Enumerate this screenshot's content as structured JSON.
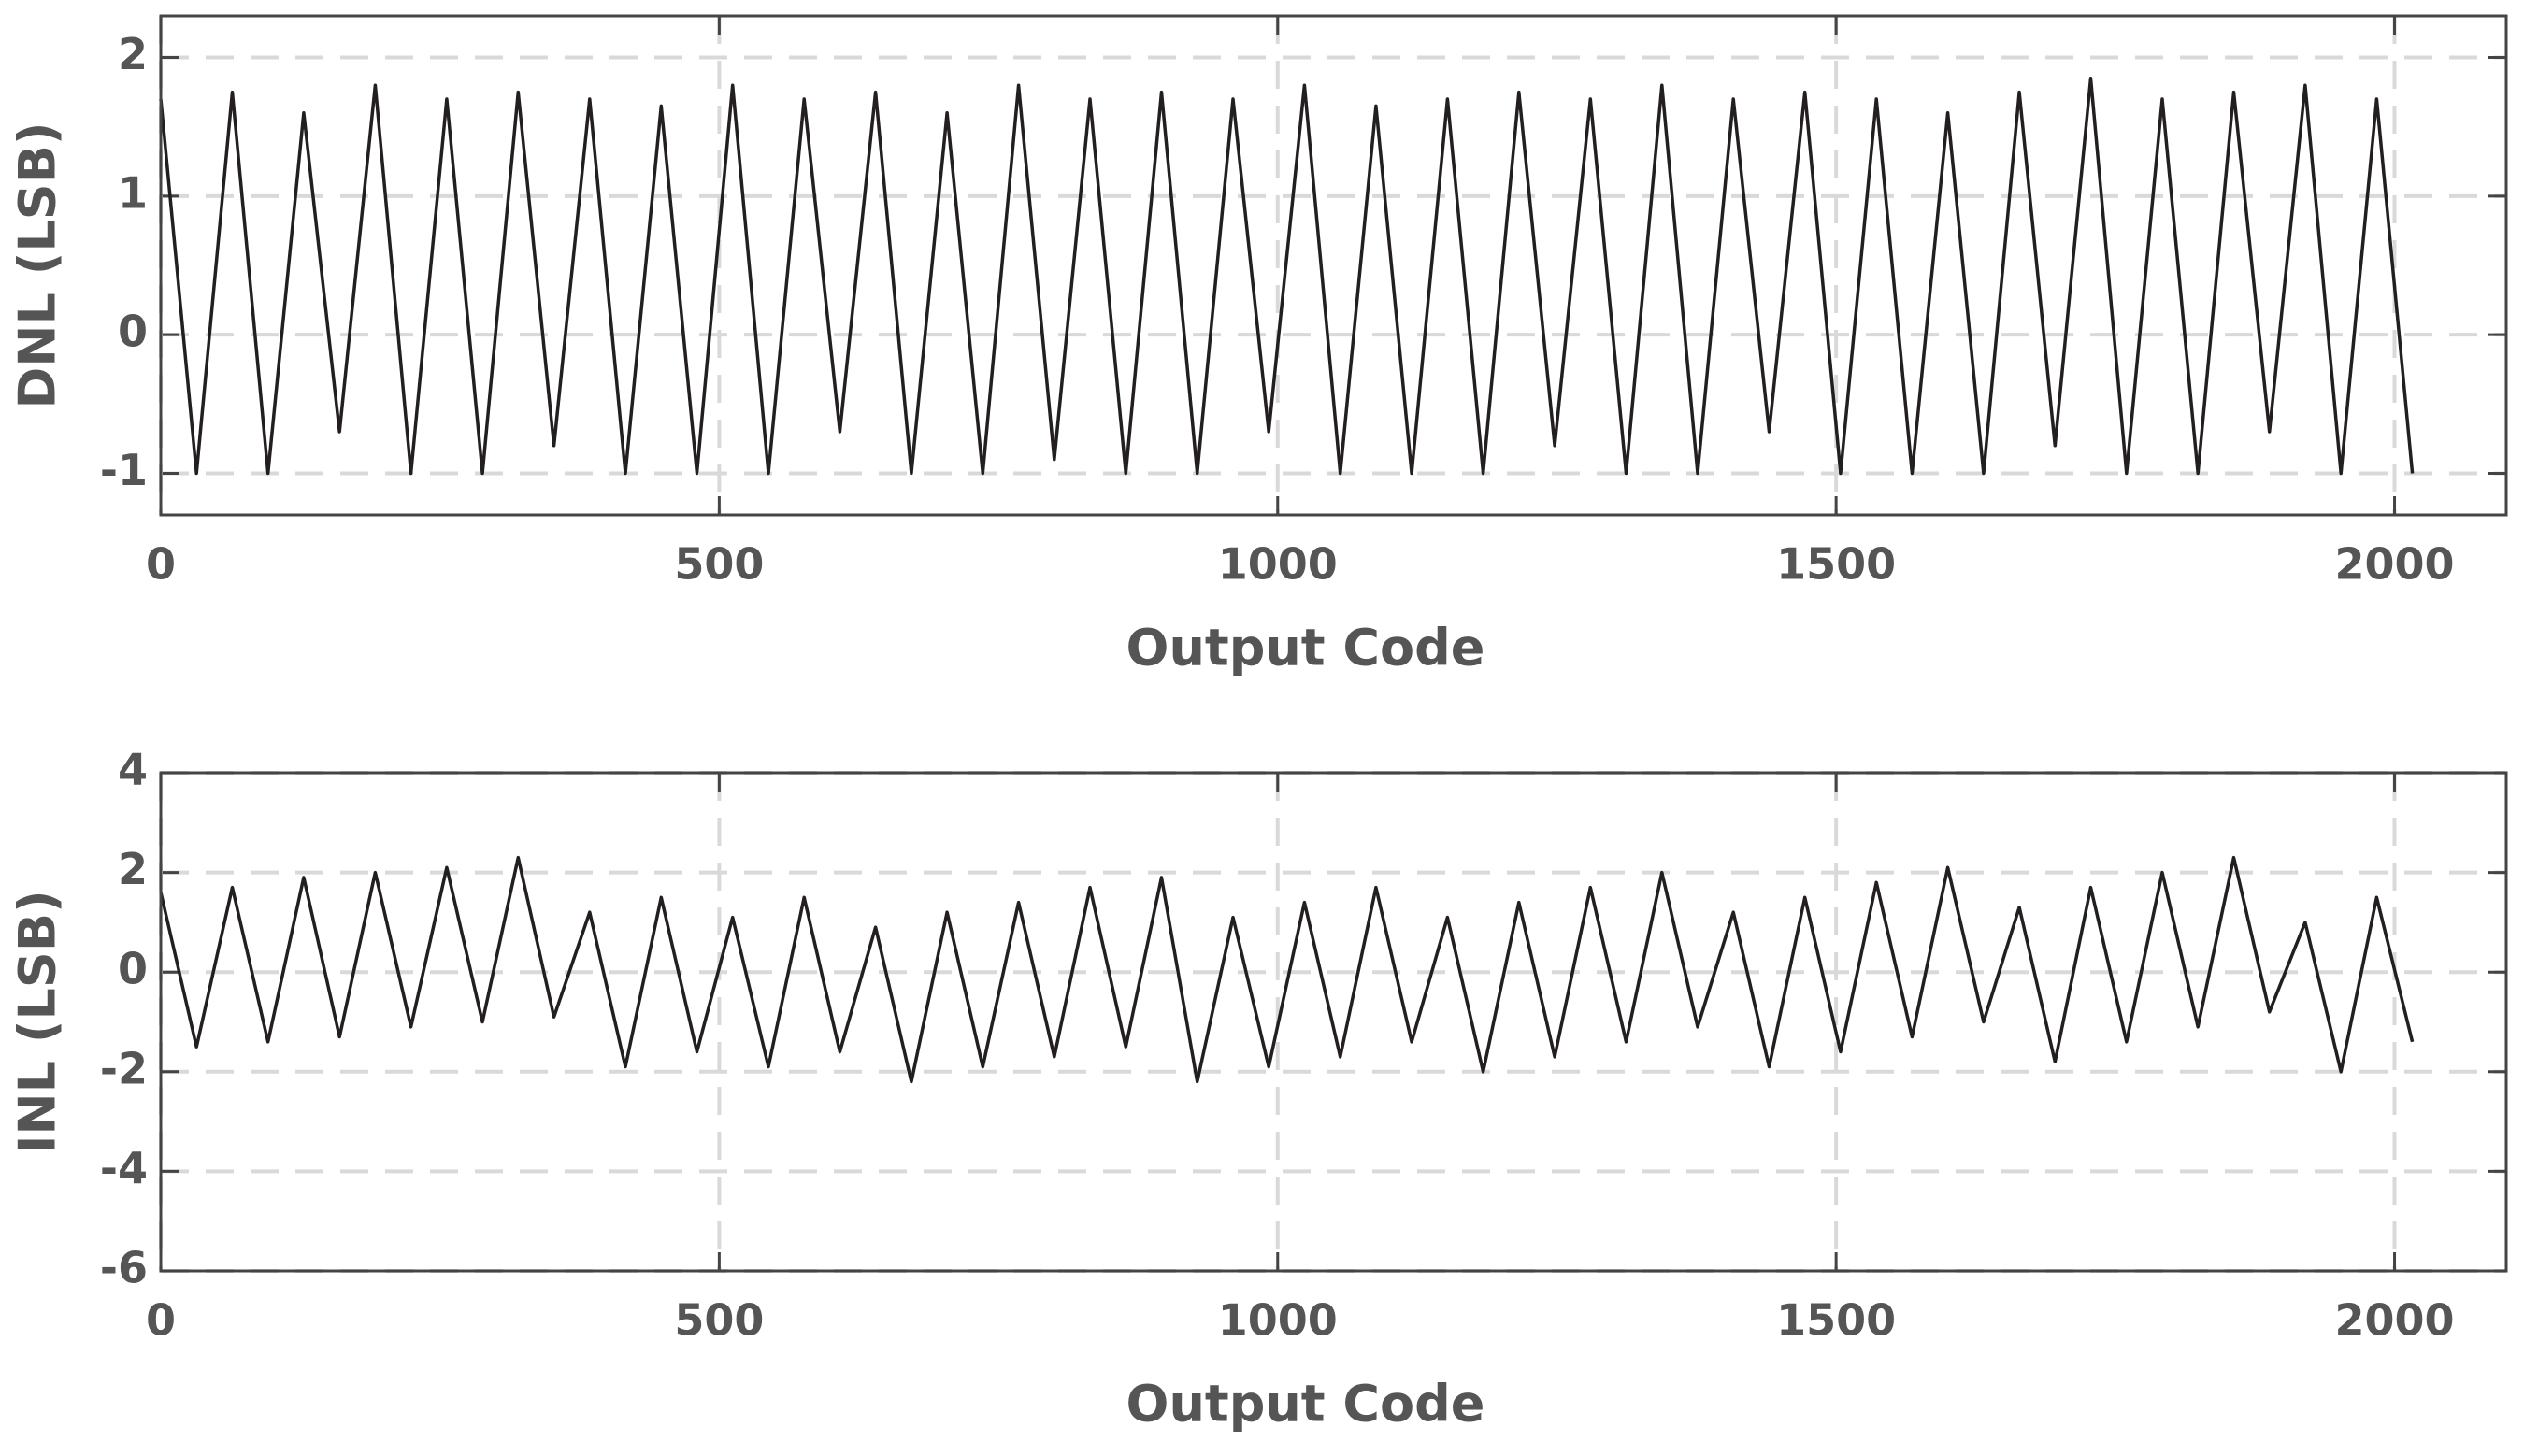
{
  "chart_data": [
    {
      "type": "line",
      "xlabel": "Output Code",
      "ylabel": "DNL (LSB)",
      "xlim": [
        0,
        2100
      ],
      "ylim": [
        -1.3,
        2.3
      ],
      "xticks": [
        0,
        500,
        1000,
        1500,
        2000
      ],
      "yticks": [
        -1,
        0,
        1,
        2
      ],
      "grid": true,
      "x": [
        0,
        32,
        64,
        96,
        128,
        160,
        192,
        224,
        256,
        288,
        320,
        352,
        384,
        416,
        448,
        480,
        512,
        544,
        576,
        608,
        640,
        672,
        704,
        736,
        768,
        800,
        832,
        864,
        896,
        928,
        960,
        992,
        1024,
        1056,
        1088,
        1120,
        1152,
        1184,
        1216,
        1248,
        1280,
        1312,
        1344,
        1376,
        1408,
        1440,
        1472,
        1504,
        1536,
        1568,
        1600,
        1632,
        1664,
        1696,
        1728,
        1760,
        1792,
        1824,
        1856,
        1888,
        1920,
        1952,
        1984,
        2016
      ],
      "series": [
        {
          "name": "DNL",
          "color": "#231f20",
          "values": [
            1.7,
            -1.0,
            1.75,
            -1.0,
            1.6,
            -0.7,
            1.8,
            -1.0,
            1.7,
            -1.0,
            1.75,
            -0.8,
            1.7,
            -1.0,
            1.65,
            -1.0,
            1.8,
            -1.0,
            1.7,
            -0.7,
            1.75,
            -1.0,
            1.6,
            -1.0,
            1.8,
            -0.9,
            1.7,
            -1.0,
            1.75,
            -1.0,
            1.7,
            -0.7,
            1.8,
            -1.0,
            1.65,
            -1.0,
            1.7,
            -1.0,
            1.75,
            -0.8,
            1.7,
            -1.0,
            1.8,
            -1.0,
            1.7,
            -0.7,
            1.75,
            -1.0,
            1.7,
            -1.0,
            1.6,
            -1.0,
            1.75,
            -0.8,
            1.85,
            -1.0,
            1.7,
            -1.0,
            1.75,
            -0.7,
            1.8,
            -1.0,
            1.7,
            -1.0
          ]
        }
      ]
    },
    {
      "type": "line",
      "xlabel": "Output Code",
      "ylabel": "INL (LSB)",
      "xlim": [
        0,
        2100
      ],
      "ylim": [
        -6,
        4
      ],
      "xticks": [
        0,
        500,
        1000,
        1500,
        2000
      ],
      "yticks": [
        -6,
        -4,
        -2,
        0,
        2,
        4
      ],
      "grid": true,
      "x": [
        0,
        32,
        64,
        96,
        128,
        160,
        192,
        224,
        256,
        288,
        320,
        352,
        384,
        416,
        448,
        480,
        512,
        544,
        576,
        608,
        640,
        672,
        704,
        736,
        768,
        800,
        832,
        864,
        896,
        928,
        960,
        992,
        1024,
        1056,
        1088,
        1120,
        1152,
        1184,
        1216,
        1248,
        1280,
        1312,
        1344,
        1376,
        1408,
        1440,
        1472,
        1504,
        1536,
        1568,
        1600,
        1632,
        1664,
        1696,
        1728,
        1760,
        1792,
        1824,
        1856,
        1888,
        1920,
        1952,
        1984,
        2016
      ],
      "series": [
        {
          "name": "INL",
          "color": "#231f20",
          "values": [
            1.6,
            -1.5,
            1.7,
            -1.4,
            1.9,
            -1.3,
            2.0,
            -1.1,
            2.1,
            -1.0,
            2.3,
            -0.9,
            1.2,
            -1.9,
            1.5,
            -1.6,
            1.1,
            -1.9,
            1.5,
            -1.6,
            0.9,
            -2.2,
            1.2,
            -1.9,
            1.4,
            -1.7,
            1.7,
            -1.5,
            1.9,
            -2.2,
            1.1,
            -1.9,
            1.4,
            -1.7,
            1.7,
            -1.4,
            1.1,
            -2.0,
            1.4,
            -1.7,
            1.7,
            -1.4,
            2.0,
            -1.1,
            1.2,
            -1.9,
            1.5,
            -1.6,
            1.8,
            -1.3,
            2.1,
            -1.0,
            1.3,
            -1.8,
            1.7,
            -1.4,
            2.0,
            -1.1,
            2.3,
            -0.8,
            1.0,
            -2.0,
            1.5,
            -1.4
          ]
        }
      ]
    }
  ]
}
